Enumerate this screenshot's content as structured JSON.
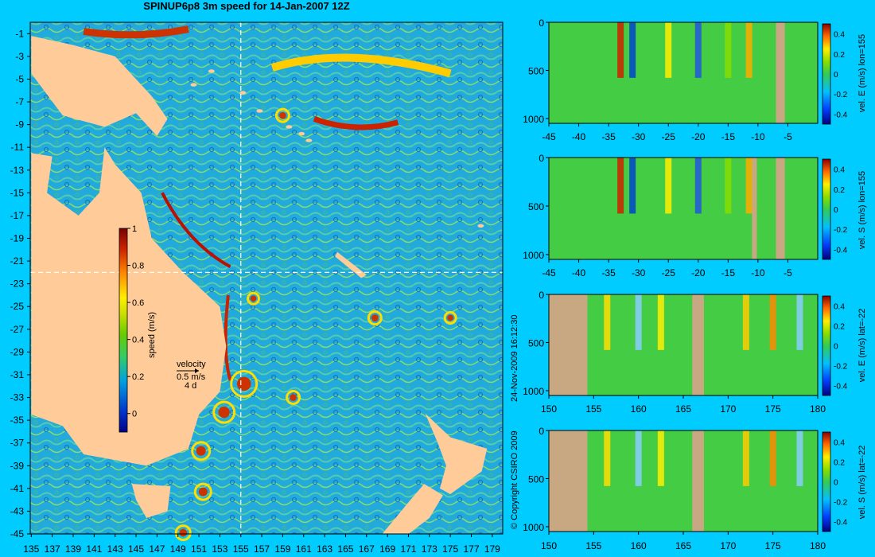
{
  "title": "SPINUP6p8 3m speed for 14-Jan-2007 12Z",
  "copyright": "© Copyright CSIRO 2009",
  "timestamp": "24-Nov-2009 16:12:30",
  "colors": {
    "background": "#00ccff",
    "land": "#ffcc99",
    "seabed": "#c8a882",
    "guide_line": "#ffffff"
  },
  "chart_data": [
    {
      "type": "heatmap",
      "name": "map",
      "title": "SPINUP6p8 3m speed for 14-Jan-2007 12Z",
      "x_ticks": [
        "135",
        "137",
        "139",
        "141",
        "143",
        "145",
        "147",
        "149",
        "151",
        "153",
        "155",
        "157",
        "159",
        "161",
        "163",
        "165",
        "167",
        "169",
        "171",
        "173",
        "175",
        "177",
        "179"
      ],
      "x_values": [
        135,
        137,
        139,
        141,
        143,
        145,
        147,
        149,
        151,
        153,
        155,
        157,
        159,
        161,
        163,
        165,
        167,
        169,
        171,
        173,
        175,
        177,
        179
      ],
      "xlim": [
        134.9,
        180
      ],
      "y_ticks": [
        "-1",
        "-3",
        "-5",
        "-7",
        "-9",
        "-11",
        "-13",
        "-15",
        "-17",
        "-19",
        "-21",
        "-23",
        "-25",
        "-27",
        "-29",
        "-31",
        "-33",
        "-35",
        "-37",
        "-39",
        "-41",
        "-43",
        "-45"
      ],
      "y_values": [
        -1,
        -3,
        -5,
        -7,
        -9,
        -11,
        -13,
        -15,
        -17,
        -19,
        -21,
        -23,
        -25,
        -27,
        -29,
        -31,
        -33,
        -35,
        -37,
        -39,
        -41,
        -43,
        -45
      ],
      "ylim": [
        -45,
        0
      ],
      "section_lon": 155,
      "section_lat": -22,
      "colorbar": {
        "label": "speed (m/s)",
        "ticks": [
          "0",
          "0.2",
          "0.4",
          "0.6",
          "0.8",
          "1"
        ],
        "tick_values": [
          0,
          0.2,
          0.4,
          0.6,
          0.8,
          1
        ],
        "range": [
          -0.1,
          1
        ]
      },
      "velocity_key": {
        "title": "velocity",
        "speed": "0.5 m/s",
        "duration": "4 d"
      }
    },
    {
      "type": "heatmap",
      "name": "section-1",
      "label": "vel. E (m/s) lon=155",
      "x_ticks": [
        "-45",
        "-40",
        "-35",
        "-30",
        "-25",
        "-20",
        "-15",
        "-10",
        "-5"
      ],
      "x_values": [
        -45,
        -40,
        -35,
        -30,
        -25,
        -20,
        -15,
        -10,
        -5
      ],
      "xlim": [
        -45,
        0
      ],
      "y_ticks": [
        "0",
        "500",
        "1000"
      ],
      "y_values": [
        0,
        500,
        1000
      ],
      "ylim": [
        0,
        1050
      ],
      "colorbar_ticks": [
        "0.4",
        "0.2",
        "0",
        "-0.2",
        "-0.4"
      ],
      "colorbar_range": [
        -0.5,
        0.5
      ]
    },
    {
      "type": "heatmap",
      "name": "section-2",
      "label": "vel. S (m/s) lon=155",
      "x_ticks": [
        "-45",
        "-40",
        "-35",
        "-30",
        "-25",
        "-20",
        "-15",
        "-10",
        "-5"
      ],
      "x_values": [
        -45,
        -40,
        -35,
        -30,
        -25,
        -20,
        -15,
        -10,
        -5
      ],
      "xlim": [
        -45,
        0
      ],
      "y_ticks": [
        "0",
        "500",
        "1000"
      ],
      "y_values": [
        0,
        500,
        1000
      ],
      "ylim": [
        0,
        1050
      ],
      "colorbar_ticks": [
        "0.4",
        "0.2",
        "0",
        "-0.2",
        "-0.4"
      ],
      "colorbar_range": [
        -0.5,
        0.5
      ]
    },
    {
      "type": "heatmap",
      "name": "section-3",
      "label": "vel. E (m/s) lat=-22",
      "x_ticks": [
        "150",
        "155",
        "160",
        "165",
        "170",
        "175",
        "180"
      ],
      "x_values": [
        150,
        155,
        160,
        165,
        170,
        175,
        180
      ],
      "xlim": [
        150,
        180
      ],
      "y_ticks": [
        "0",
        "500",
        "1000"
      ],
      "y_values": [
        0,
        500,
        1000
      ],
      "ylim": [
        0,
        1050
      ],
      "colorbar_ticks": [
        "0.4",
        "0.2",
        "0",
        "-0.2",
        "-0.4"
      ],
      "colorbar_range": [
        -0.5,
        0.5
      ]
    },
    {
      "type": "heatmap",
      "name": "section-4",
      "label": "vel. S (m/s) lat=-22",
      "x_ticks": [
        "150",
        "155",
        "160",
        "165",
        "170",
        "175",
        "180"
      ],
      "x_values": [
        150,
        155,
        160,
        165,
        170,
        175,
        180
      ],
      "xlim": [
        150,
        180
      ],
      "y_ticks": [
        "0",
        "500",
        "1000"
      ],
      "y_values": [
        0,
        500,
        1000
      ],
      "ylim": [
        0,
        1050
      ],
      "colorbar_ticks": [
        "0.4",
        "0.2",
        "0",
        "-0.2",
        "-0.4"
      ],
      "colorbar_range": [
        -0.5,
        0.5
      ]
    }
  ]
}
